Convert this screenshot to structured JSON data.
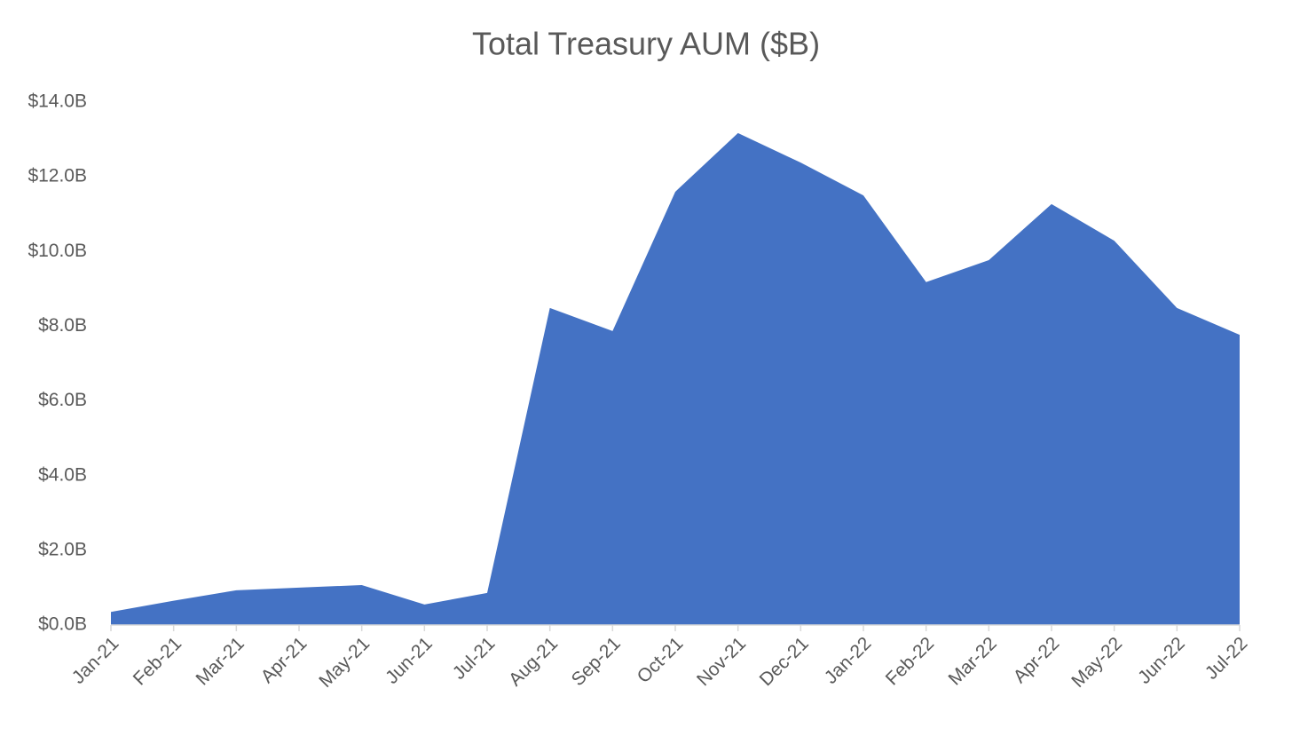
{
  "chart_data": {
    "type": "area",
    "title": "Total Treasury AUM ($B)",
    "categories": [
      "Jan-21",
      "Feb-21",
      "Mar-21",
      "Apr-21",
      "May-21",
      "Jun-21",
      "Jul-21",
      "Aug-21",
      "Sep-21",
      "Oct-21",
      "Nov-21",
      "Dec-21",
      "Jan-22",
      "Feb-22",
      "Mar-22",
      "Apr-22",
      "May-22",
      "Jun-22",
      "Jul-22"
    ],
    "values": [
      0.35,
      0.65,
      0.93,
      1.0,
      1.07,
      0.55,
      0.86,
      8.49,
      7.87,
      11.6,
      13.17,
      12.38,
      11.5,
      9.18,
      9.77,
      11.27,
      10.29,
      8.49,
      7.77
    ],
    "color": "#4472c4",
    "ylim": [
      0,
      14
    ],
    "yticks": [
      {
        "value": 0,
        "label": "$0.0B"
      },
      {
        "value": 2,
        "label": "$2.0B"
      },
      {
        "value": 4,
        "label": "$4.0B"
      },
      {
        "value": 6,
        "label": "$6.0B"
      },
      {
        "value": 8,
        "label": "$8.0B"
      },
      {
        "value": 10,
        "label": "$10.0B"
      },
      {
        "value": 12,
        "label": "$12.0B"
      },
      {
        "value": 14,
        "label": "$14.0B"
      }
    ],
    "grid": false
  }
}
